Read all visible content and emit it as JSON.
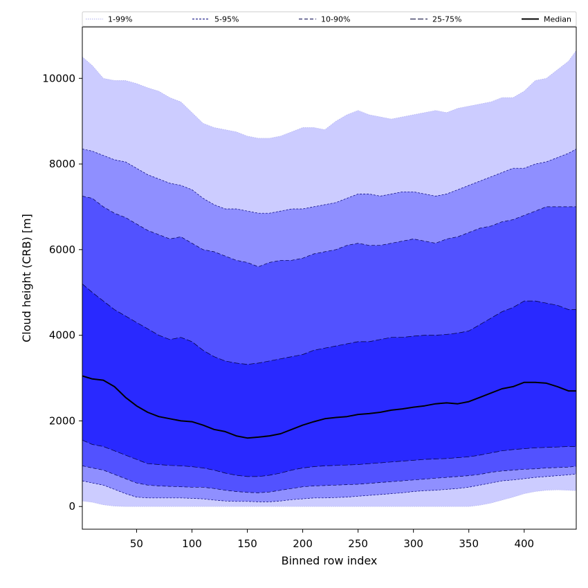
{
  "chart_data": {
    "type": "area",
    "title": "",
    "xlabel": "Binned row index",
    "ylabel": "Cloud height (CRB) [m]",
    "xlim": [
      1,
      447
    ],
    "ylim": [
      -530,
      11200
    ],
    "x_ticks": [
      50,
      100,
      150,
      200,
      250,
      300,
      350,
      400
    ],
    "y_ticks": [
      0,
      2000,
      4000,
      6000,
      8000,
      10000
    ],
    "grid": false,
    "legend_position": "top",
    "x": [
      1,
      10,
      20,
      30,
      40,
      50,
      60,
      70,
      80,
      90,
      100,
      110,
      120,
      130,
      140,
      150,
      160,
      170,
      180,
      190,
      200,
      210,
      220,
      230,
      240,
      250,
      260,
      270,
      280,
      290,
      300,
      310,
      320,
      330,
      340,
      350,
      360,
      370,
      380,
      390,
      400,
      410,
      420,
      430,
      440,
      447
    ],
    "bands": [
      {
        "name": "1-99%",
        "color": "#ccccff",
        "line_color": "#b0b0ee",
        "dash": "1.5,1.5",
        "lower": [
          130,
          100,
          40,
          10,
          0,
          0,
          0,
          0,
          0,
          0,
          0,
          0,
          0,
          0,
          0,
          0,
          0,
          0,
          0,
          0,
          0,
          0,
          0,
          0,
          0,
          0,
          0,
          0,
          0,
          0,
          0,
          0,
          0,
          0,
          0,
          0,
          30,
          80,
          150,
          220,
          300,
          350,
          380,
          390,
          380,
          370
        ],
        "upper": [
          10500,
          10300,
          10000,
          9950,
          9950,
          9880,
          9780,
          9700,
          9550,
          9450,
          9200,
          8950,
          8850,
          8800,
          8750,
          8650,
          8600,
          8600,
          8650,
          8750,
          8850,
          8850,
          8800,
          9000,
          9150,
          9250,
          9150,
          9100,
          9050,
          9100,
          9150,
          9200,
          9250,
          9200,
          9300,
          9350,
          9400,
          9450,
          9550,
          9550,
          9700,
          9950,
          10000,
          10200,
          10400,
          10650
        ]
      },
      {
        "name": "5-95%",
        "color": "#8f8fff",
        "line_color": "#00007a",
        "dash": "3,2",
        "lower": [
          600,
          550,
          500,
          400,
          300,
          220,
          200,
          200,
          200,
          200,
          190,
          180,
          150,
          130,
          120,
          120,
          110,
          110,
          130,
          160,
          180,
          200,
          200,
          210,
          220,
          240,
          260,
          280,
          300,
          320,
          350,
          370,
          380,
          400,
          420,
          450,
          500,
          550,
          600,
          620,
          650,
          680,
          700,
          720,
          740,
          760
        ],
        "upper": [
          8350,
          8300,
          8200,
          8100,
          8050,
          7900,
          7750,
          7650,
          7550,
          7500,
          7400,
          7200,
          7050,
          6950,
          6950,
          6900,
          6850,
          6850,
          6900,
          6950,
          6950,
          7000,
          7050,
          7100,
          7200,
          7300,
          7300,
          7250,
          7300,
          7350,
          7350,
          7300,
          7250,
          7300,
          7400,
          7500,
          7600,
          7700,
          7800,
          7900,
          7900,
          8000,
          8050,
          8150,
          8250,
          8350
        ]
      },
      {
        "name": "10-90%",
        "color": "#5252ff",
        "line_color": "#00004a",
        "dash": "5,3",
        "lower": [
          950,
          900,
          850,
          750,
          650,
          550,
          500,
          480,
          470,
          460,
          450,
          450,
          420,
          380,
          350,
          330,
          320,
          340,
          380,
          420,
          460,
          480,
          490,
          500,
          510,
          520,
          540,
          560,
          580,
          600,
          620,
          640,
          660,
          680,
          700,
          720,
          750,
          800,
          830,
          850,
          870,
          880,
          900,
          910,
          920,
          940
        ],
        "upper": [
          7250,
          7200,
          7000,
          6850,
          6750,
          6600,
          6450,
          6350,
          6250,
          6300,
          6150,
          6000,
          5950,
          5850,
          5750,
          5700,
          5600,
          5700,
          5750,
          5750,
          5800,
          5900,
          5950,
          6000,
          6100,
          6150,
          6100,
          6100,
          6150,
          6200,
          6250,
          6200,
          6150,
          6250,
          6300,
          6400,
          6500,
          6550,
          6650,
          6700,
          6800,
          6900,
          7000,
          7000,
          7000,
          7000
        ]
      },
      {
        "name": "25-75%",
        "color": "#2929ff",
        "line_color": "#000033",
        "dash": "8,3",
        "lower": [
          1550,
          1450,
          1400,
          1300,
          1200,
          1100,
          1000,
          980,
          960,
          950,
          930,
          900,
          850,
          780,
          730,
          700,
          700,
          730,
          780,
          850,
          900,
          930,
          950,
          960,
          970,
          980,
          1000,
          1020,
          1040,
          1060,
          1080,
          1100,
          1110,
          1120,
          1140,
          1160,
          1200,
          1250,
          1300,
          1330,
          1350,
          1370,
          1380,
          1390,
          1400,
          1400
        ],
        "upper": [
          5200,
          5000,
          4800,
          4600,
          4450,
          4300,
          4150,
          4000,
          3900,
          3950,
          3850,
          3650,
          3500,
          3400,
          3350,
          3320,
          3350,
          3400,
          3450,
          3500,
          3550,
          3650,
          3700,
          3750,
          3800,
          3850,
          3850,
          3900,
          3950,
          3950,
          3980,
          4000,
          4000,
          4020,
          4050,
          4100,
          4250,
          4400,
          4550,
          4650,
          4800,
          4800,
          4750,
          4700,
          4600,
          4600
        ]
      }
    ],
    "series": [
      {
        "name": "Median",
        "color": "#000000",
        "values": [
          3050,
          2980,
          2950,
          2800,
          2550,
          2350,
          2200,
          2100,
          2050,
          2000,
          1980,
          1900,
          1800,
          1750,
          1650,
          1600,
          1620,
          1650,
          1700,
          1800,
          1900,
          1980,
          2050,
          2080,
          2100,
          2150,
          2170,
          2200,
          2250,
          2280,
          2320,
          2350,
          2400,
          2420,
          2400,
          2450,
          2550,
          2650,
          2750,
          2800,
          2900,
          2900,
          2880,
          2800,
          2700,
          2700
        ]
      }
    ],
    "legend": [
      "1-99%",
      "5-95%",
      "10-90%",
      "25-75%",
      "Median"
    ]
  }
}
